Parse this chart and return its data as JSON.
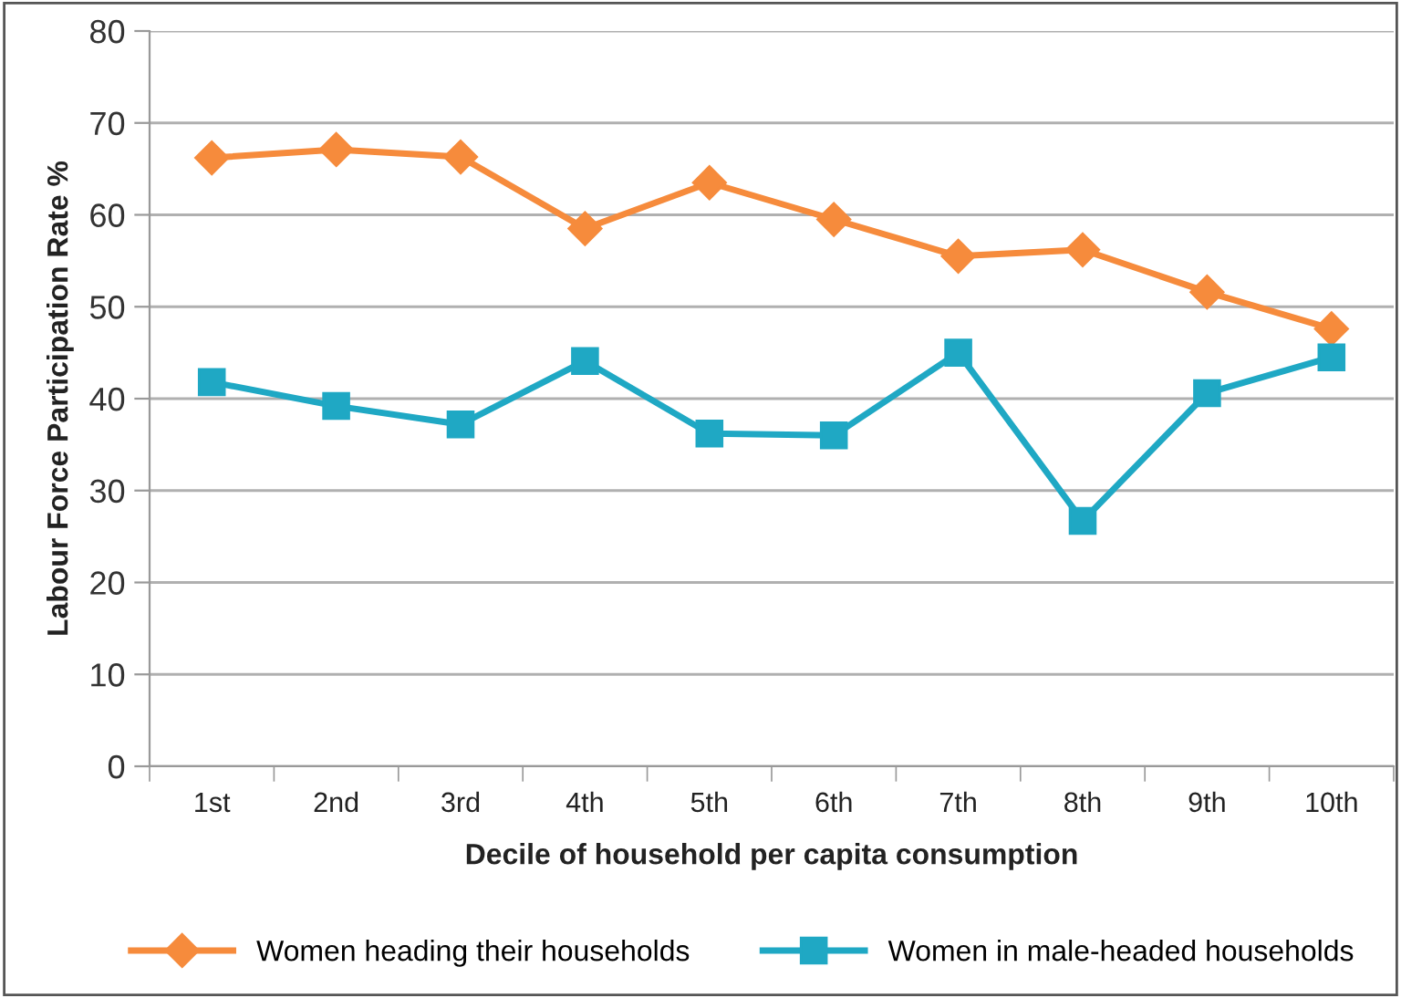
{
  "chart_data": {
    "type": "line",
    "xlabel": "Decile of household per capita consumption",
    "ylabel": "Labour Force Participation Rate %",
    "categories": [
      "1st",
      "2nd",
      "3rd",
      "4th",
      "5th",
      "6th",
      "7th",
      "8th",
      "9th",
      "10th"
    ],
    "series": [
      {
        "name": "Women heading their households",
        "color": "#f68b3c",
        "marker": "diamond",
        "values": [
          66.2,
          67.1,
          66.3,
          58.5,
          63.5,
          59.5,
          55.5,
          56.2,
          51.6,
          47.6
        ]
      },
      {
        "name": "Women in male-headed households",
        "color": "#1fa8c4",
        "marker": "square",
        "values": [
          41.8,
          39.2,
          37.2,
          44.1,
          36.2,
          36.0,
          45.0,
          26.7,
          40.6,
          44.5
        ]
      }
    ],
    "ylim": [
      0,
      80
    ],
    "yticks": [
      0,
      10,
      20,
      30,
      40,
      50,
      60,
      70,
      80
    ],
    "grid": "y",
    "legend": "bottom",
    "line_style": "solid"
  }
}
